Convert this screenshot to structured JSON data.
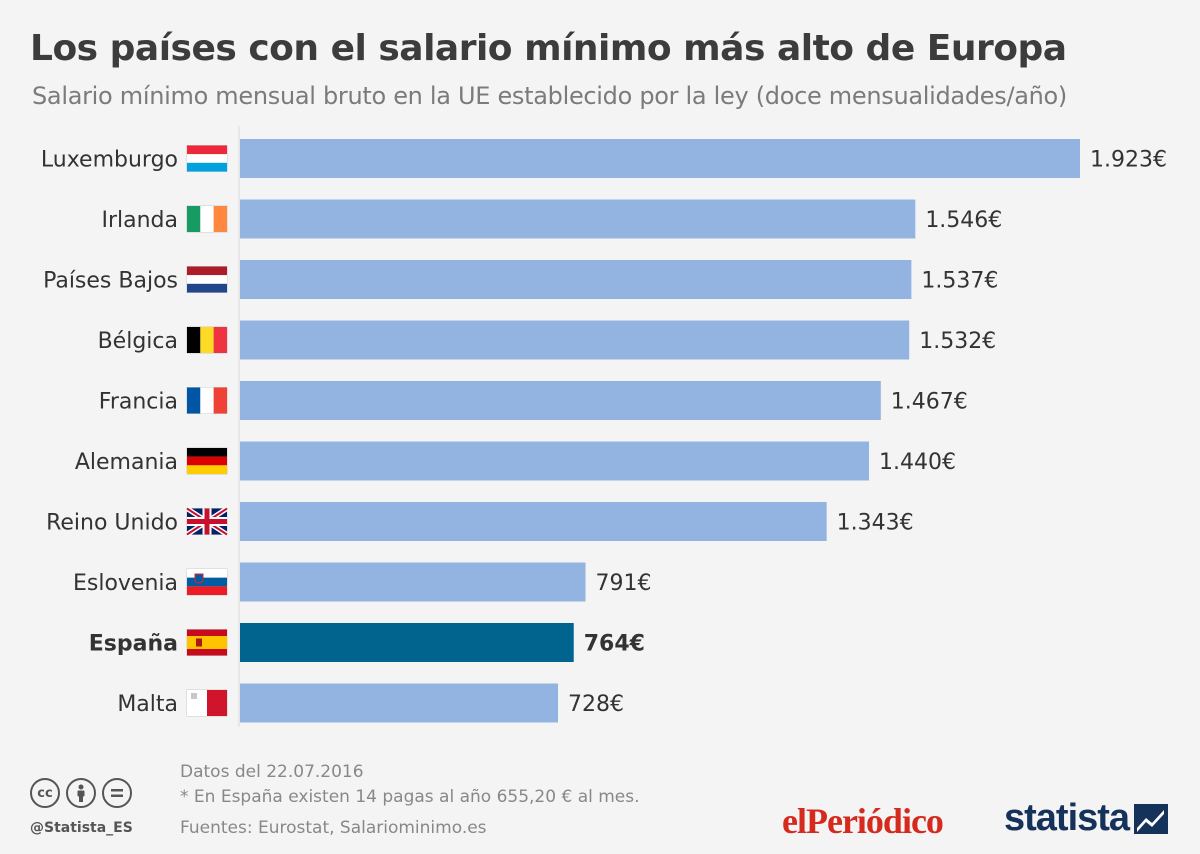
{
  "header": {
    "title": "Los países con el salario mínimo más alto de Europa",
    "subtitle": "Salario mínimo mensual bruto en la UE establecido por la ley (doce mensualidades/año)"
  },
  "chart_data": {
    "type": "bar",
    "orientation": "horizontal",
    "title": "Los países con el salario mínimo más alto de Europa",
    "subtitle": "Salario mínimo mensual bruto en la UE establecido por la ley (doce mensualidades/año)",
    "categories": [
      "Luxemburgo",
      "Irlanda",
      "Países Bajos",
      "Bélgica",
      "Francia",
      "Alemania",
      "Reino Unido",
      "Eslovenia",
      "España",
      "Malta"
    ],
    "values": [
      1923,
      1546,
      1537,
      1532,
      1467,
      1440,
      1343,
      791,
      764,
      728
    ],
    "value_labels": [
      "1.923€",
      "1.546€",
      "1.537€",
      "1.532€",
      "1.467€",
      "1.440€",
      "1.343€",
      "791€",
      "764€",
      "728€"
    ],
    "flags": [
      "luxembourg",
      "ireland",
      "netherlands",
      "belgium",
      "france",
      "germany",
      "united-kingdom",
      "slovenia",
      "spain",
      "malta"
    ],
    "highlight": "España",
    "bar_color": "#93b4e0",
    "highlight_color": "#00648f",
    "xlim": [
      0,
      1923
    ],
    "grid": false,
    "xlabel": "",
    "ylabel": ""
  },
  "footer": {
    "date": "Datos del 22.07.2016",
    "note": "* En España existen 14 pagas al año 655,20 € al mes.",
    "sources": "Fuentes: Eurostat, Salariominimo.es",
    "handle": "@Statista_ES",
    "license_icons": [
      "cc-icon",
      "by-icon",
      "nd-icon"
    ],
    "logo_left": "elPeriódico",
    "logo_right": "statista"
  }
}
